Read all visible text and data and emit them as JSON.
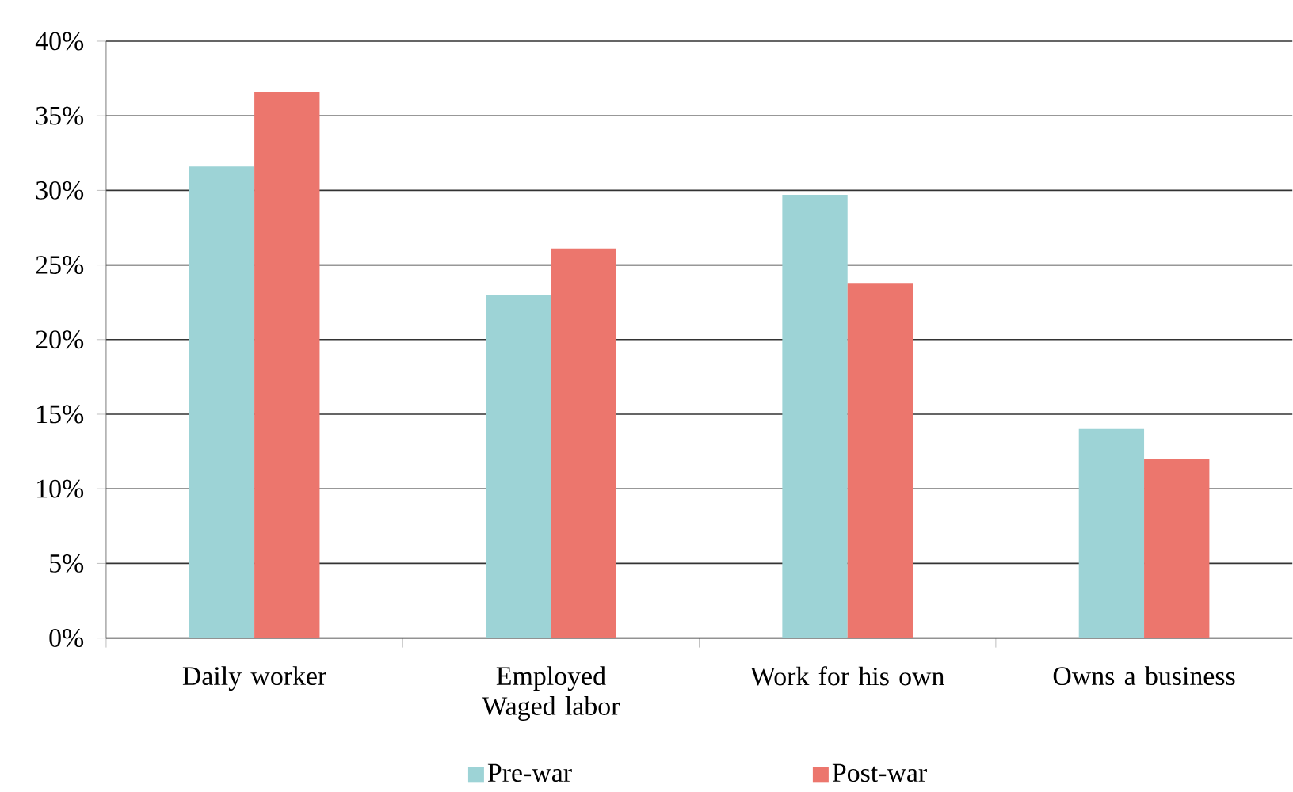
{
  "chart_data": {
    "type": "bar",
    "categories": [
      "Daily worker",
      "Employed Waged labor",
      "Work for his own",
      "Owns a business"
    ],
    "series": [
      {
        "name": "Pre-war",
        "color": "#9dd3d6",
        "values": [
          31.6,
          23.0,
          29.7,
          14.0
        ]
      },
      {
        "name": "Post-war",
        "color": "#ec766d",
        "values": [
          36.6,
          26.1,
          23.8,
          12.0
        ]
      }
    ],
    "ylim": [
      0,
      40
    ],
    "yticks": [
      {
        "value": 0,
        "label": "0%"
      },
      {
        "value": 5,
        "label": "5%"
      },
      {
        "value": 10,
        "label": "10%"
      },
      {
        "value": 15,
        "label": "15%"
      },
      {
        "value": 20,
        "label": "20%"
      },
      {
        "value": 25,
        "label": "25%"
      },
      {
        "value": 30,
        "label": "30%"
      },
      {
        "value": 35,
        "label": "35%"
      },
      {
        "value": 40,
        "label": "40%"
      }
    ],
    "grid": "y",
    "legend": "bottom"
  }
}
